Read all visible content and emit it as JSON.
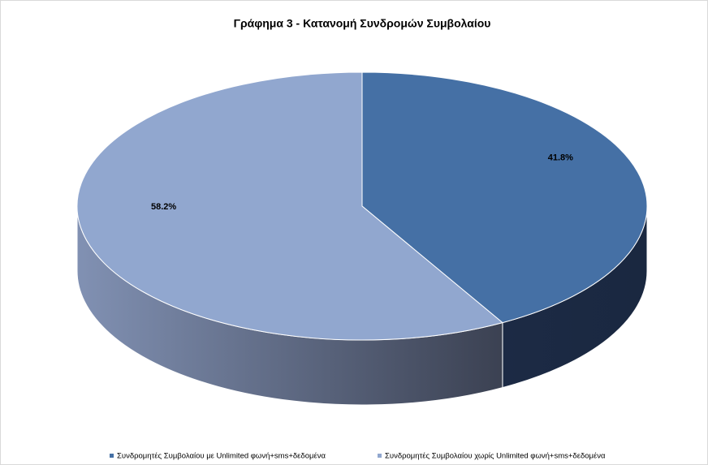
{
  "chart_data": {
    "type": "pie",
    "title": "Γράφημα 3 - Κατανομή Συνδρομών Συμβολαίου",
    "categories": [
      "Συνδρομητές Συμβολαίου με Unlimited φωνή+sms+δεδομένα",
      "Συνδρομητές Συμβολαίου χωρίς Unlimited φωνή+sms+δεδομένα"
    ],
    "values": [
      41.8,
      58.2
    ],
    "value_labels": [
      "41.8%",
      "58.2%"
    ],
    "colors": [
      "#4570a5",
      "#91a7cf"
    ],
    "legend": "bottom"
  }
}
